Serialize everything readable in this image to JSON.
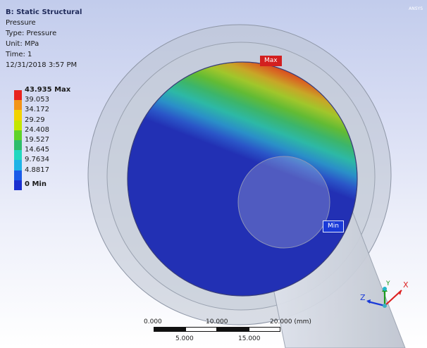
{
  "header": {
    "analysis": "B: Static Structural",
    "result": "Pressure",
    "type": "Type: Pressure",
    "unit": "Unit: MPa",
    "time": "Time: 1",
    "date": "12/31/2018 3:57 PM"
  },
  "watermark": "ANSYS",
  "legend": [
    {
      "label": "43.935 Max",
      "color": "#e8231d",
      "bold": true
    },
    {
      "label": "39.053",
      "color": "#f39417",
      "bold": false
    },
    {
      "label": "34.172",
      "color": "#f2d300",
      "bold": false
    },
    {
      "label": "29.29",
      "color": "#c4e600",
      "bold": false
    },
    {
      "label": "24.408",
      "color": "#5fd32a",
      "bold": false
    },
    {
      "label": "19.527",
      "color": "#2ebd6b",
      "bold": false
    },
    {
      "label": "14.645",
      "color": "#21d8c0",
      "bold": false
    },
    {
      "label": "9.7634",
      "color": "#1eb3e6",
      "bold": false
    },
    {
      "label": "4.8817",
      "color": "#1a5be8",
      "bold": false
    },
    {
      "label": "0 Min",
      "color": "#1a2fd0",
      "bold": true
    }
  ],
  "probes": {
    "max": "Max",
    "min": "Min"
  },
  "scale_bar": {
    "top": [
      "0.000",
      "10.000",
      "20.000 (mm)"
    ],
    "bottom": [
      "5.000",
      "15.000"
    ]
  },
  "triad": {
    "x": "X",
    "y": "Y",
    "z": "Z"
  }
}
